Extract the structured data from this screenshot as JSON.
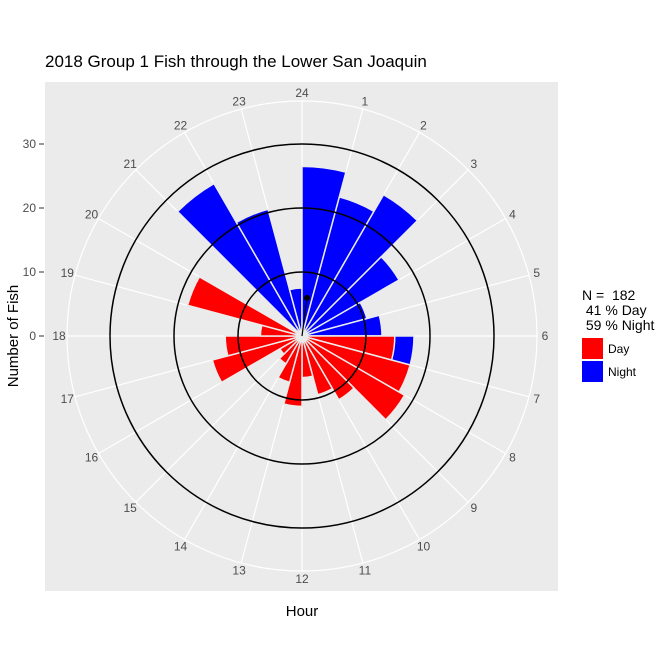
{
  "chart_data": {
    "type": "bar",
    "polar": true,
    "title": "2018 Group 1 Fish through the Lower San Joaquin",
    "xlabel": "Hour",
    "ylabel": "Number of Fish",
    "hours": [
      "24",
      "1",
      "2",
      "3",
      "4",
      "5",
      "6",
      "7",
      "8",
      "9",
      "10",
      "11",
      "12",
      "13",
      "14",
      "15",
      "16",
      "17",
      "18",
      "19",
      "20",
      "21",
      "22",
      "23"
    ],
    "y_ticks": [
      "0",
      "10",
      "20",
      "30"
    ],
    "r_max": 30,
    "rings": [
      10,
      20,
      30
    ],
    "colors": {
      "Day": "#ff0000",
      "Night": "#0000ff",
      "panel": "#ebebeb",
      "grid": "#ffffff"
    },
    "series": [
      {
        "name": "Night",
        "hours": [
          0,
          1,
          2,
          3,
          4,
          5,
          6,
          21,
          22,
          23,
          24
        ],
        "values": [
          26.5,
          22.5,
          25.5,
          17.5,
          10.5,
          12.5,
          17.5,
          27.5,
          20.5,
          7.5,
          26.5
        ]
      },
      {
        "name": "Day",
        "hours": [
          6,
          7,
          8,
          9,
          10,
          11,
          12,
          13,
          14,
          15,
          16,
          17,
          18,
          19,
          20
        ],
        "values": [
          14.5,
          17.5,
          18.5,
          11.5,
          9.5,
          6.5,
          11,
          7.5,
          5,
          4,
          14.5,
          12,
          6.5,
          18.5,
          1
        ]
      }
    ],
    "mean_vector": {
      "angle_hours": 0.5,
      "length": 6
    },
    "legend_position": "right"
  },
  "legend": {
    "summary_n": "N =  182",
    "summary_day": " 41 % Day",
    "summary_night": " 59 % Night",
    "keys": [
      "Day",
      "Night"
    ]
  }
}
